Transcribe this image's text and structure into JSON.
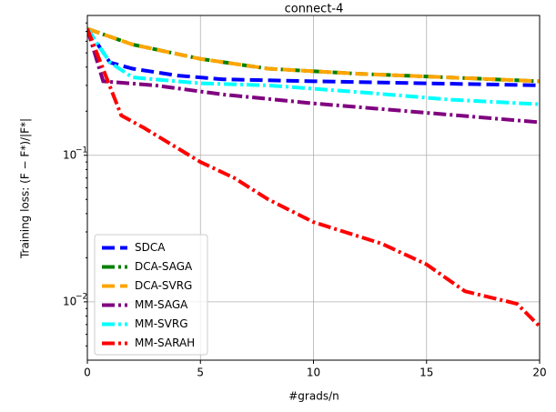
{
  "chart_data": {
    "type": "line",
    "title": "connect-4",
    "xlabel": "#grads/n",
    "ylabel": "Training loss: (F − F*)/|F*|",
    "log_y": true,
    "grid": true,
    "legend": "lower left",
    "xlim": [
      0,
      20
    ],
    "xticks": [
      0,
      5,
      10,
      15,
      20
    ],
    "ylim": [
      0.004,
      0.9
    ],
    "yticks": [
      {
        "value": 0.01,
        "label": "10",
        "exponent": "−2"
      },
      {
        "value": 0.1,
        "label": "10",
        "exponent": "−1"
      }
    ],
    "series": [
      {
        "name": "SDCA",
        "color": "#0000ff",
        "linestyle": "--",
        "x": [
          0,
          1,
          2,
          4,
          6,
          10,
          15,
          20
        ],
        "values": [
          0.73,
          0.43,
          0.39,
          0.35,
          0.33,
          0.32,
          0.31,
          0.3
        ]
      },
      {
        "name": "DCA-SAGA",
        "color": "#008000",
        "linestyle": "-.",
        "x": [
          0,
          2,
          5,
          8,
          12,
          16,
          20
        ],
        "values": [
          0.73,
          0.57,
          0.455,
          0.39,
          0.36,
          0.34,
          0.32
        ]
      },
      {
        "name": "DCA-SVRG",
        "color": "#ffa500",
        "linestyle": "--",
        "x": [
          0,
          2,
          5,
          8,
          12,
          16,
          20
        ],
        "values": [
          0.73,
          0.57,
          0.455,
          0.39,
          0.36,
          0.34,
          0.32
        ]
      },
      {
        "name": "MM-SAGA",
        "color": "#800080",
        "linestyle": "-.",
        "x": [
          0,
          0.7,
          3,
          6,
          10,
          15,
          20
        ],
        "values": [
          0.73,
          0.32,
          0.3,
          0.26,
          0.226,
          0.195,
          0.168
        ]
      },
      {
        "name": "MM-SVRG",
        "color": "#00ffff",
        "linestyle": "-.",
        "x": [
          0,
          1,
          2,
          5,
          8,
          12,
          16,
          20
        ],
        "values": [
          0.73,
          0.43,
          0.34,
          0.31,
          0.3,
          0.27,
          0.24,
          0.223
        ]
      },
      {
        "name": "MM-SARAH",
        "color": "#ff0000",
        "linestyle": "-.",
        "x": [
          0,
          1.5,
          2.5,
          5,
          6.5,
          8,
          10,
          13,
          15,
          16.7,
          19,
          20
        ],
        "values": [
          0.73,
          0.187,
          0.154,
          0.09,
          0.07,
          0.05,
          0.035,
          0.025,
          0.018,
          0.0118,
          0.0097,
          0.0068
        ]
      }
    ]
  }
}
